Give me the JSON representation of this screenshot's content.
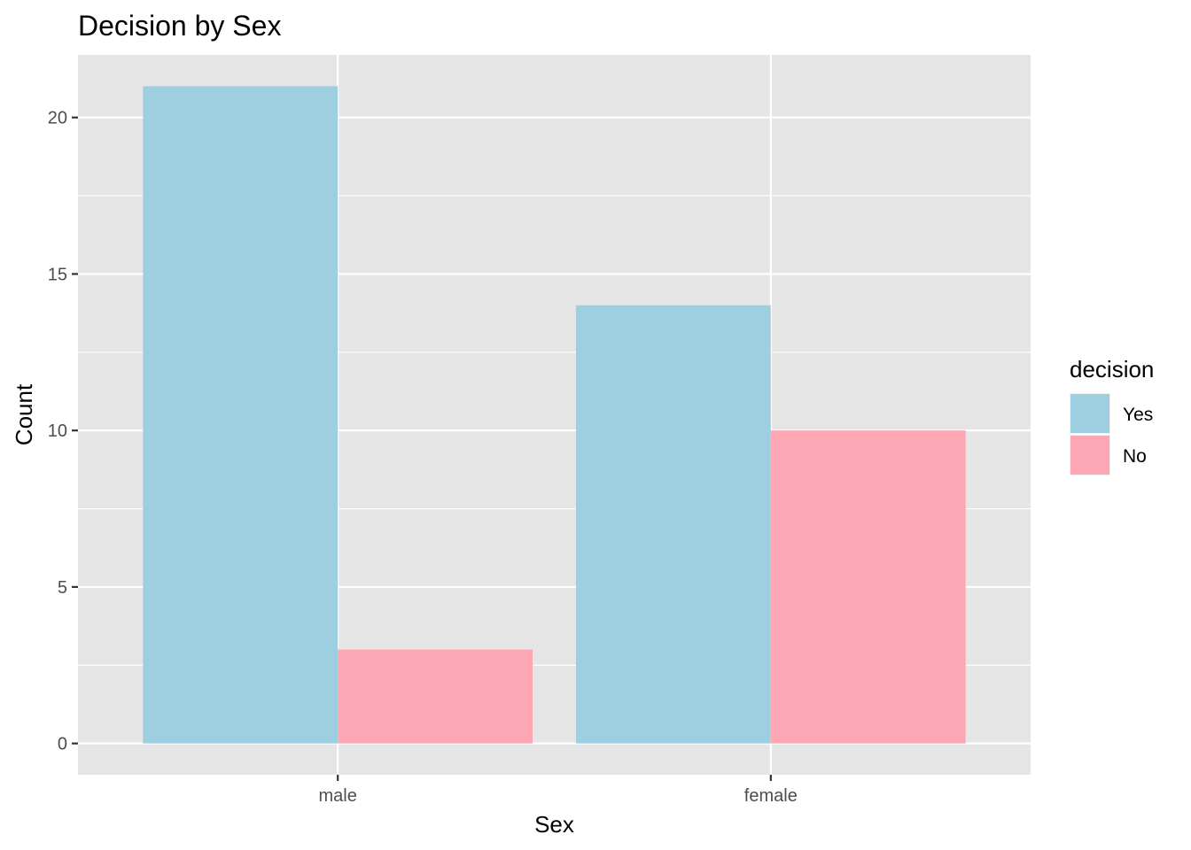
{
  "chart_data": {
    "type": "bar",
    "title": "Decision by Sex",
    "xlabel": "Sex",
    "ylabel": "Count",
    "categories": [
      "male",
      "female"
    ],
    "series": [
      {
        "name": "Yes",
        "values": [
          21,
          14
        ]
      },
      {
        "name": "No",
        "values": [
          3,
          10
        ]
      }
    ],
    "ylim": [
      -1,
      22
    ],
    "yticks": [
      0,
      5,
      10,
      15,
      20
    ],
    "grid": true,
    "legend": {
      "title": "decision",
      "placement": "right"
    }
  },
  "colors": {
    "panel": "#e5e5e5",
    "grid": "#ffffff",
    "Yes": "#9ecfe0",
    "No": "#fda7b5",
    "tick_text": "#4d4d4d",
    "tick_mark": "#333333"
  }
}
